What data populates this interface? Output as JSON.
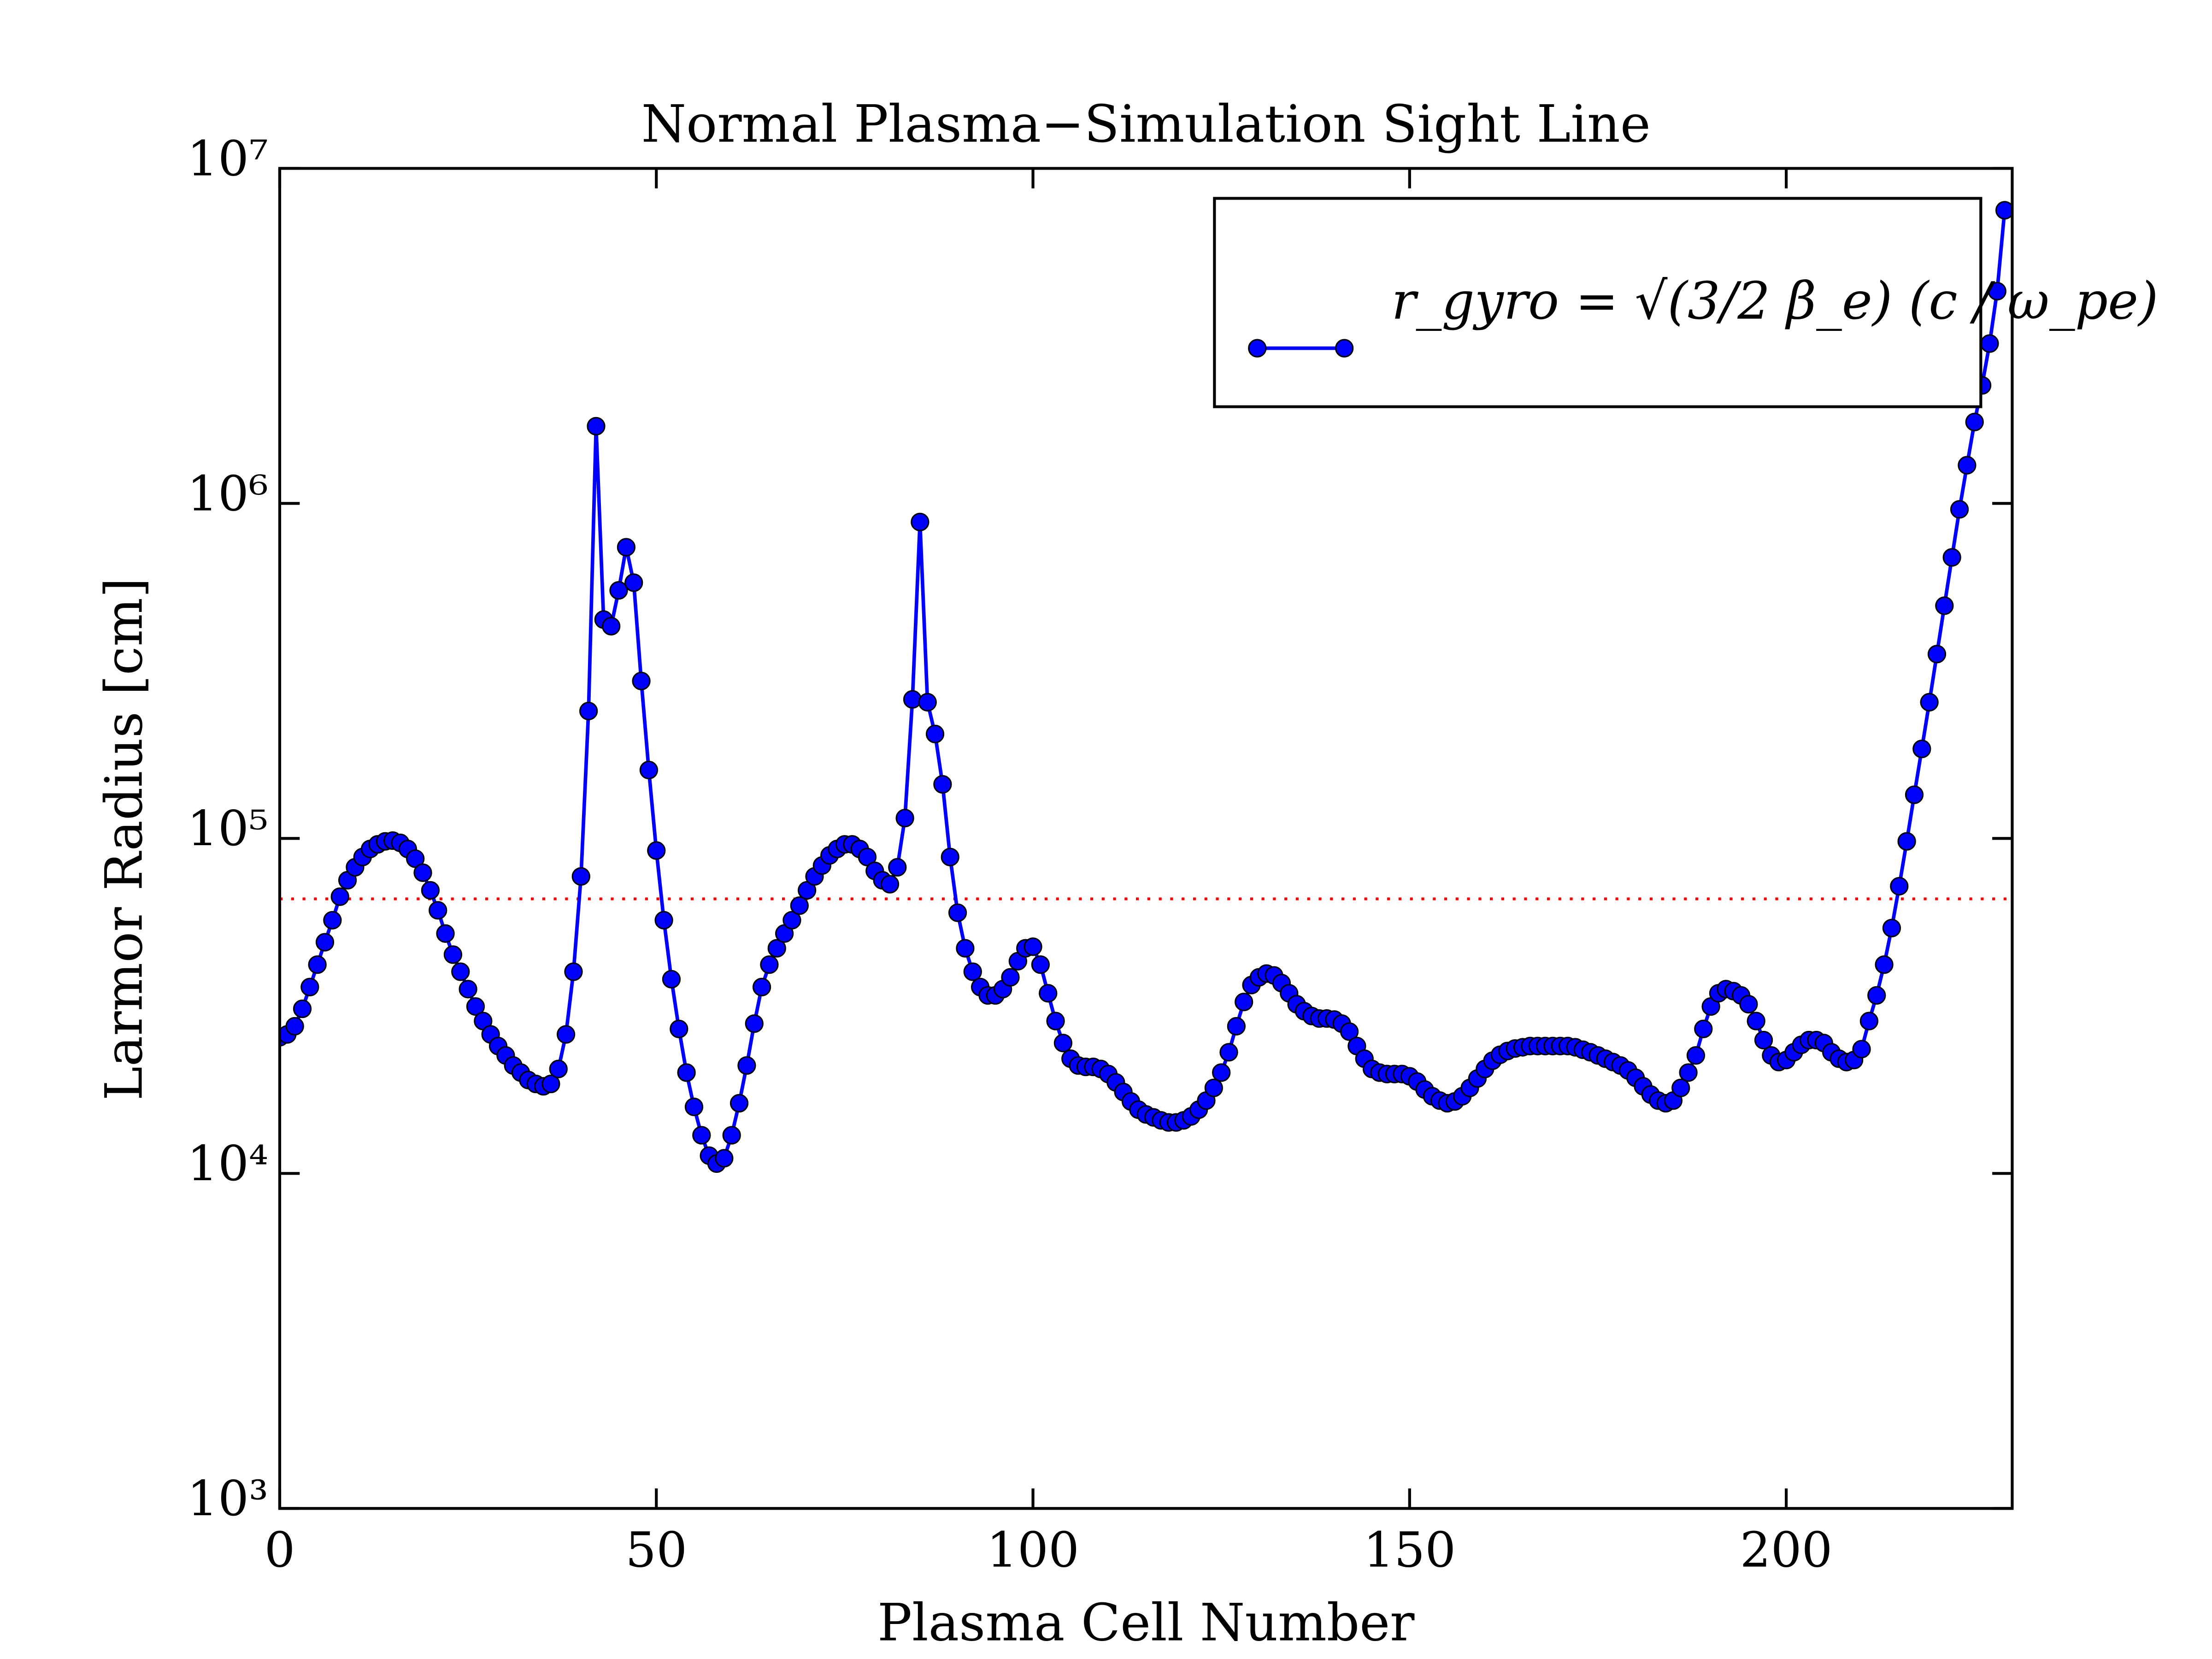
{
  "chart_data": {
    "type": "line",
    "title": "Normal Plasma−Simulation Sight Line",
    "xlabel": "Plasma Cell Number",
    "ylabel": "Larmor Radius [cm]",
    "x": [
      0,
      1,
      2,
      3,
      4,
      5,
      6,
      7,
      8,
      9,
      10,
      11,
      12,
      13,
      14,
      15,
      16,
      17,
      18,
      19,
      20,
      21,
      22,
      23,
      24,
      25,
      26,
      27,
      28,
      29,
      30,
      31,
      32,
      33,
      34,
      35,
      36,
      37,
      38,
      39,
      40,
      41,
      42,
      43,
      44,
      45,
      46,
      47,
      48,
      49,
      50,
      51,
      52,
      53,
      54,
      55,
      56,
      57,
      58,
      59,
      60,
      61,
      62,
      63,
      64,
      65,
      66,
      67,
      68,
      69,
      70,
      71,
      72,
      73,
      74,
      75,
      76,
      77,
      78,
      79,
      80,
      81,
      82,
      83,
      84,
      85,
      86,
      87,
      88,
      89,
      90,
      91,
      92,
      93,
      94,
      95,
      96,
      97,
      98,
      99,
      100,
      101,
      102,
      103,
      104,
      105,
      106,
      107,
      108,
      109,
      110,
      111,
      112,
      113,
      114,
      115,
      116,
      117,
      118,
      119,
      120,
      121,
      122,
      123,
      124,
      125,
      126,
      127,
      128,
      129,
      130,
      131,
      132,
      133,
      134,
      135,
      136,
      137,
      138,
      139,
      140,
      141,
      142,
      143,
      144,
      145,
      146,
      147,
      148,
      149,
      150,
      151,
      152,
      153,
      154,
      155,
      156,
      157,
      158,
      159,
      160,
      161,
      162,
      163,
      164,
      165,
      166,
      167,
      168,
      169,
      170,
      171,
      172,
      173,
      174,
      175,
      176,
      177,
      178,
      179,
      180,
      181,
      182,
      183,
      184,
      185,
      186,
      187,
      188,
      189,
      190,
      191,
      192,
      193,
      194,
      195,
      196,
      197,
      198,
      199,
      200,
      201,
      202,
      203,
      204,
      205,
      206,
      207,
      208,
      209,
      210,
      211,
      212,
      213,
      214,
      215,
      216,
      217,
      218,
      219,
      220,
      221,
      222,
      223,
      224,
      225,
      226,
      227,
      228,
      229
    ],
    "series": [
      {
        "name": "r_gyro = √(3/2 β_e) (c / ω_pe)",
        "color": "#0000ff",
        "values": [
          25500,
          26000,
          27500,
          31000,
          36000,
          42000,
          49000,
          57000,
          67000,
          75000,
          82000,
          88000,
          93000,
          96000,
          98000,
          98500,
          97000,
          93000,
          87000,
          79000,
          70000,
          61000,
          52000,
          45000,
          40000,
          35500,
          31500,
          28500,
          26000,
          24000,
          22500,
          21000,
          20000,
          19000,
          18500,
          18200,
          18500,
          20500,
          26000,
          40000,
          77000,
          240000,
          1700000,
          450000,
          430000,
          550000,
          740000,
          580000,
          295000,
          160000,
          92000,
          57000,
          38000,
          27000,
          20000,
          15800,
          13000,
          11300,
          10700,
          11100,
          13000,
          16200,
          21000,
          28000,
          36000,
          42000,
          47000,
          52000,
          57000,
          63000,
          70000,
          77000,
          83000,
          89000,
          93000,
          96000,
          96000,
          93000,
          88000,
          80000,
          75000,
          73000,
          82000,
          115000,
          260000,
          880000,
          255000,
          205000,
          145000,
          88000,
          60000,
          47000,
          40000,
          36000,
          34000,
          34000,
          35500,
          38500,
          43000,
          47000,
          47500,
          42000,
          34500,
          28500,
          24500,
          22000,
          21000,
          20800,
          20800,
          20500,
          19800,
          18700,
          17500,
          16400,
          15500,
          15000,
          14700,
          14400,
          14200,
          14200,
          14400,
          14800,
          15500,
          16500,
          18000,
          20000,
          23000,
          27500,
          32500,
          36500,
          38500,
          39500,
          39000,
          37000,
          34500,
          32000,
          30500,
          29500,
          29000,
          29000,
          28800,
          28000,
          26500,
          24000,
          22000,
          20500,
          20000,
          19800,
          19800,
          19800,
          19500,
          18800,
          17800,
          17000,
          16500,
          16200,
          16400,
          17000,
          18000,
          19200,
          20500,
          21700,
          22600,
          23200,
          23600,
          23800,
          24000,
          24000,
          24000,
          24000,
          24000,
          24000,
          23800,
          23400,
          23000,
          22500,
          22000,
          21500,
          21000,
          20300,
          19300,
          18200,
          17200,
          16500,
          16200,
          16500,
          18000,
          20000,
          22500,
          27000,
          31500,
          34500,
          35500,
          35000,
          34000,
          32000,
          28500,
          25000,
          22500,
          21500,
          21800,
          23000,
          24200,
          25000,
          25000,
          24500,
          23000,
          22000,
          21500,
          21800,
          23500,
          28500,
          34000,
          42000,
          54000,
          72000,
          98000,
          135000,
          185000,
          255000,
          355000,
          495000,
          690000,
          960000,
          1300000,
          1750000,
          2250000,
          3000000,
          4300000,
          7500000
        ]
      }
    ],
    "reference_line": {
      "value": 66000,
      "color": "#ff0000"
    },
    "xlim": [
      0,
      230
    ],
    "xticks": [
      0,
      50,
      100,
      150,
      200
    ],
    "ylim": [
      1000,
      10000000
    ],
    "ylog": true,
    "yticks": [
      {
        "value": 1000,
        "label": "10³"
      },
      {
        "value": 10000,
        "label": "10⁴"
      },
      {
        "value": 100000,
        "label": "10⁵"
      },
      {
        "value": 1000000,
        "label": "10⁶"
      },
      {
        "value": 10000000,
        "label": "10⁷"
      }
    ],
    "legend": "upper right"
  }
}
